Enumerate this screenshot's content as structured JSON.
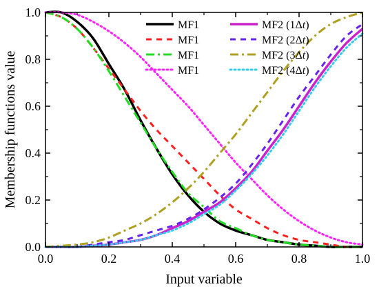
{
  "chart_data": {
    "type": "line",
    "title": "",
    "xlabel": "Input variable",
    "ylabel": "Membership functions value",
    "xlim": [
      0,
      1
    ],
    "ylim": [
      0,
      1
    ],
    "xticks": [
      "0.0",
      "0.2",
      "0.4",
      "0.6",
      "0.8",
      "1.0"
    ],
    "yticks": [
      "0.0",
      "0.2",
      "0.4",
      "0.6",
      "0.8",
      "1.0"
    ],
    "grid": false,
    "legend_position": "top-right",
    "x": [
      0.0,
      0.05,
      0.1,
      0.15,
      0.2,
      0.25,
      0.3,
      0.35,
      0.4,
      0.45,
      0.5,
      0.55,
      0.6,
      0.65,
      0.7,
      0.75,
      0.8,
      0.85,
      0.9,
      0.95,
      1.0
    ],
    "series": [
      {
        "name": "MF1",
        "label_main": "MF1",
        "label_sub": "",
        "color": "#000000",
        "style": "solid",
        "values": [
          1.0,
          1.0,
          0.96,
          0.89,
          0.78,
          0.67,
          0.54,
          0.42,
          0.31,
          0.22,
          0.15,
          0.1,
          0.07,
          0.05,
          0.03,
          0.02,
          0.01,
          0.005,
          0.0,
          0.0,
          0.0
        ]
      },
      {
        "name": "MF1",
        "label_main": "MF1",
        "label_sub": "",
        "color": "#ff2020",
        "style": "dash",
        "values": [
          1.0,
          0.98,
          0.93,
          0.85,
          0.76,
          0.67,
          0.58,
          0.5,
          0.43,
          0.36,
          0.29,
          0.22,
          0.16,
          0.12,
          0.08,
          0.05,
          0.03,
          0.02,
          0.01,
          0.0,
          0.0
        ]
      },
      {
        "name": "MF1",
        "label_main": "MF1",
        "label_sub": "",
        "color": "#22dd22",
        "style": "dashdot",
        "values": [
          1.0,
          0.98,
          0.93,
          0.85,
          0.75,
          0.64,
          0.53,
          0.42,
          0.32,
          0.23,
          0.17,
          0.11,
          0.08,
          0.05,
          0.03,
          0.02,
          0.01,
          0.005,
          0.0,
          0.0,
          0.0
        ]
      },
      {
        "name": "MF1",
        "label_main": "MF1",
        "label_sub": "",
        "color": "#ff22ff",
        "style": "dot",
        "values": [
          1.0,
          1.0,
          0.99,
          0.96,
          0.92,
          0.87,
          0.81,
          0.74,
          0.67,
          0.6,
          0.52,
          0.44,
          0.36,
          0.29,
          0.22,
          0.16,
          0.11,
          0.07,
          0.04,
          0.02,
          0.01
        ]
      },
      {
        "name": "MF2 (1Δt)",
        "label_main": "MF2 (1Δ",
        "label_sub": "t",
        "label_tail": ")",
        "color": "#cc22cc",
        "style": "solid",
        "values": [
          0.0,
          0.0,
          0.0,
          0.005,
          0.01,
          0.02,
          0.03,
          0.05,
          0.08,
          0.11,
          0.15,
          0.19,
          0.25,
          0.32,
          0.41,
          0.5,
          0.6,
          0.7,
          0.79,
          0.87,
          0.93
        ]
      },
      {
        "name": "MF2 (2Δt)",
        "label_main": "MF2 (2Δ",
        "label_sub": "t",
        "label_tail": ")",
        "color": "#6622ee",
        "style": "dash",
        "values": [
          0.0,
          0.0,
          0.0,
          0.01,
          0.02,
          0.03,
          0.05,
          0.07,
          0.09,
          0.12,
          0.16,
          0.21,
          0.27,
          0.35,
          0.44,
          0.54,
          0.64,
          0.73,
          0.82,
          0.9,
          0.95
        ]
      },
      {
        "name": "MF2 (3Δt)",
        "label_main": "MF2 (3Δ",
        "label_sub": "t",
        "label_tail": ")",
        "color": "#b0a020",
        "style": "dashdot",
        "values": [
          0.0,
          0.005,
          0.01,
          0.02,
          0.04,
          0.07,
          0.1,
          0.14,
          0.19,
          0.25,
          0.32,
          0.4,
          0.48,
          0.57,
          0.66,
          0.75,
          0.83,
          0.9,
          0.95,
          0.98,
          1.0
        ]
      },
      {
        "name": "MF2 (4Δt)",
        "label_main": "MF2 (4Δ",
        "label_sub": "t",
        "label_tail": ")",
        "color": "#33ccee",
        "style": "dot",
        "values": [
          0.0,
          0.0,
          0.0,
          0.005,
          0.01,
          0.02,
          0.03,
          0.05,
          0.07,
          0.1,
          0.14,
          0.18,
          0.24,
          0.31,
          0.39,
          0.48,
          0.58,
          0.68,
          0.77,
          0.85,
          0.91
        ]
      }
    ]
  }
}
